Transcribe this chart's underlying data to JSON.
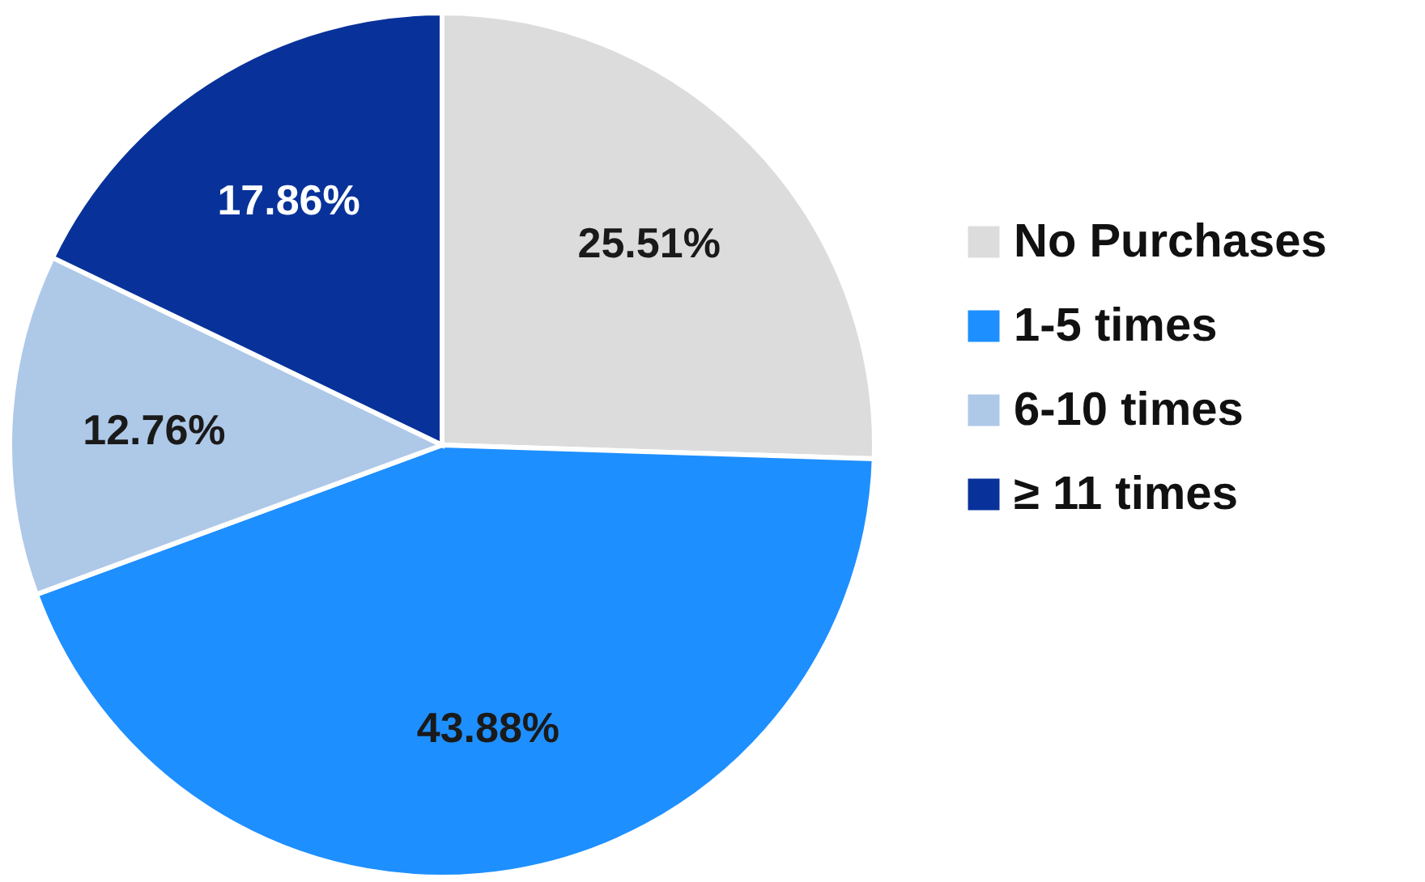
{
  "chart_data": {
    "type": "pie",
    "categories": [
      "No Purchases",
      "1-5 times",
      "6-10 times",
      "≥ 11 times"
    ],
    "values": [
      25.51,
      43.88,
      12.76,
      17.86
    ],
    "colors": [
      "#dcdcdc",
      "#1e8fff",
      "#aec8e8",
      "#08329a"
    ],
    "value_labels": [
      "25.51%",
      "43.88%",
      "12.76%",
      "17.86%"
    ],
    "legend": "right"
  }
}
